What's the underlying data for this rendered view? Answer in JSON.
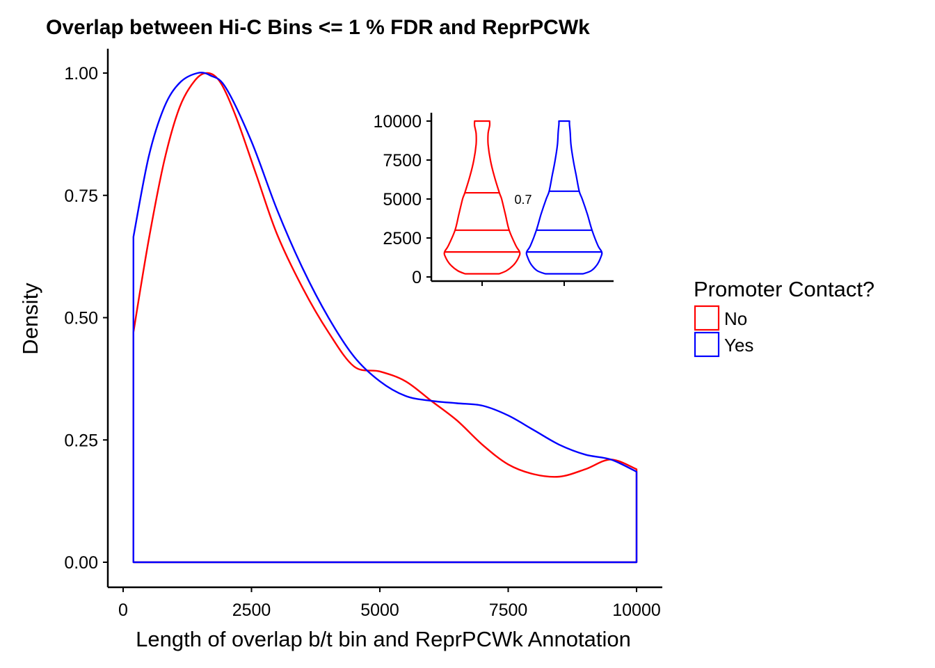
{
  "chart_data": [
    {
      "type": "area",
      "title": "Overlap between Hi-C Bins <= 1 % FDR and ReprPCWk",
      "xlabel": "Length of overlap b/t bin and ReprPCWk Annotation",
      "ylabel": "Density",
      "xlim": [
        -700,
        10500
      ],
      "ylim": [
        -0.05,
        1.05
      ],
      "x_ticks": [
        "0",
        "2500",
        "5000",
        "7500",
        "10000"
      ],
      "y_ticks": [
        "0.00",
        "0.25",
        "0.50",
        "0.75",
        "1.00"
      ],
      "grid": false,
      "legend": {
        "title": "Promoter Contact?",
        "placement": "right",
        "entries": [
          "No",
          "Yes"
        ]
      },
      "series": [
        {
          "name": "No",
          "color": "#ff0000",
          "x": [
            200,
            500,
            800,
            1100,
            1400,
            1650,
            1900,
            2200,
            2600,
            3000,
            3500,
            4000,
            4500,
            5000,
            5500,
            6000,
            6500,
            7000,
            7500,
            8000,
            8500,
            9000,
            9500,
            10000
          ],
          "y": [
            0.47,
            0.66,
            0.82,
            0.93,
            0.985,
            1.0,
            0.98,
            0.91,
            0.79,
            0.67,
            0.56,
            0.47,
            0.4,
            0.39,
            0.37,
            0.33,
            0.29,
            0.24,
            0.2,
            0.18,
            0.175,
            0.19,
            0.21,
            0.19
          ]
        },
        {
          "name": "Yes",
          "color": "#0000ff",
          "x": [
            200,
            500,
            800,
            1100,
            1450,
            1700,
            2000,
            2500,
            3000,
            3500,
            4000,
            4500,
            5000,
            5500,
            6000,
            6500,
            7000,
            7500,
            8000,
            8500,
            9000,
            9500,
            10000
          ],
          "y": [
            0.665,
            0.83,
            0.93,
            0.98,
            1.0,
            0.995,
            0.97,
            0.86,
            0.72,
            0.6,
            0.5,
            0.42,
            0.37,
            0.34,
            0.33,
            0.325,
            0.32,
            0.3,
            0.27,
            0.24,
            0.22,
            0.21,
            0.185
          ]
        }
      ]
    },
    {
      "type": "violin",
      "ylim": [
        -300,
        10500
      ],
      "y_ticks": [
        "0",
        "2500",
        "5000",
        "7500",
        "10000"
      ],
      "annotation": "0.7",
      "groups": [
        {
          "name": "No",
          "color": "#ff0000",
          "quantiles": [
            1600,
            3000,
            5400
          ],
          "profile": [
            [
              200,
              0.45
            ],
            [
              400,
              0.65
            ],
            [
              800,
              0.85
            ],
            [
              1300,
              0.98
            ],
            [
              1600,
              1.0
            ],
            [
              2000,
              0.9
            ],
            [
              3000,
              0.72
            ],
            [
              4000,
              0.62
            ],
            [
              5000,
              0.52
            ],
            [
              5400,
              0.46
            ],
            [
              6500,
              0.32
            ],
            [
              7500,
              0.22
            ],
            [
              8500,
              0.16
            ],
            [
              9200,
              0.16
            ],
            [
              9700,
              0.2
            ],
            [
              10000,
              0.2
            ]
          ]
        },
        {
          "name": "Yes",
          "color": "#0000ff",
          "quantiles": [
            1600,
            3000,
            5500
          ],
          "profile": [
            [
              200,
              0.5
            ],
            [
              400,
              0.72
            ],
            [
              800,
              0.88
            ],
            [
              1300,
              0.98
            ],
            [
              1600,
              1.0
            ],
            [
              2000,
              0.9
            ],
            [
              3000,
              0.74
            ],
            [
              4000,
              0.62
            ],
            [
              5000,
              0.48
            ],
            [
              5500,
              0.4
            ],
            [
              6500,
              0.32
            ],
            [
              7500,
              0.24
            ],
            [
              8500,
              0.18
            ],
            [
              9300,
              0.16
            ],
            [
              9800,
              0.14
            ],
            [
              10000,
              0.14
            ]
          ]
        }
      ]
    }
  ]
}
